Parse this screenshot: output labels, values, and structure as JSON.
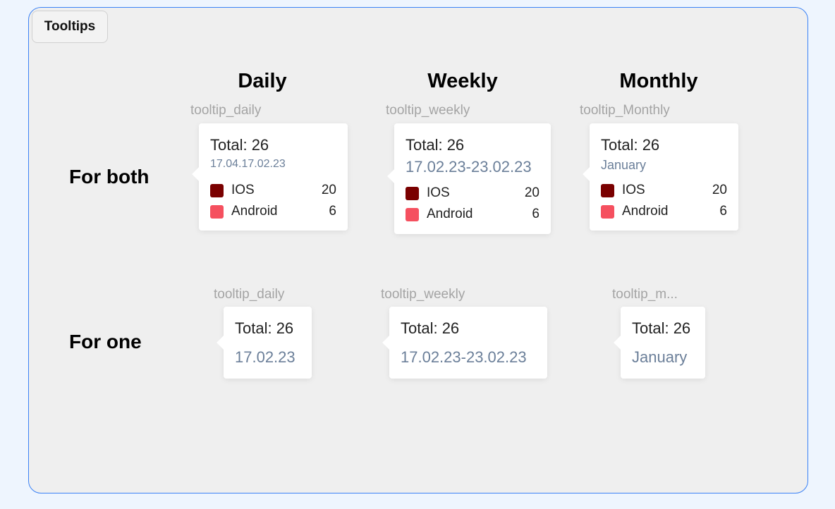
{
  "badge": "Tooltips",
  "columns": [
    "Daily",
    "Weekly",
    "Monthly"
  ],
  "rows": [
    {
      "label": "For both",
      "tooltips": [
        {
          "layer": "tooltip_daily",
          "total": "Total: 26",
          "date": "17.04.17.02.23",
          "items": [
            {
              "name": "IOS",
              "value": 20,
              "color": "#7a0000"
            },
            {
              "name": "Android",
              "value": 6,
              "color": "#f5505f"
            }
          ]
        },
        {
          "layer": "tooltip_weekly",
          "total": "Total: 26",
          "date": "17.02.23-23.02.23",
          "items": [
            {
              "name": "IOS",
              "value": 20,
              "color": "#7a0000"
            },
            {
              "name": "Android",
              "value": 6,
              "color": "#f5505f"
            }
          ]
        },
        {
          "layer": "tooltip_Monthly",
          "total": "Total: 26",
          "date": "January",
          "items": [
            {
              "name": "IOS",
              "value": 20,
              "color": "#7a0000"
            },
            {
              "name": "Android",
              "value": 6,
              "color": "#f5505f"
            }
          ]
        }
      ]
    },
    {
      "label": "For one",
      "tooltips": [
        {
          "layer": "tooltip_daily",
          "total": "Total: 26",
          "date": "17.02.23"
        },
        {
          "layer": "tooltip_weekly",
          "total": "Total: 26",
          "date": "17.02.23-23.02.23"
        },
        {
          "layer": "tooltip_m...",
          "total": "Total: 26",
          "date": "January"
        }
      ]
    }
  ]
}
